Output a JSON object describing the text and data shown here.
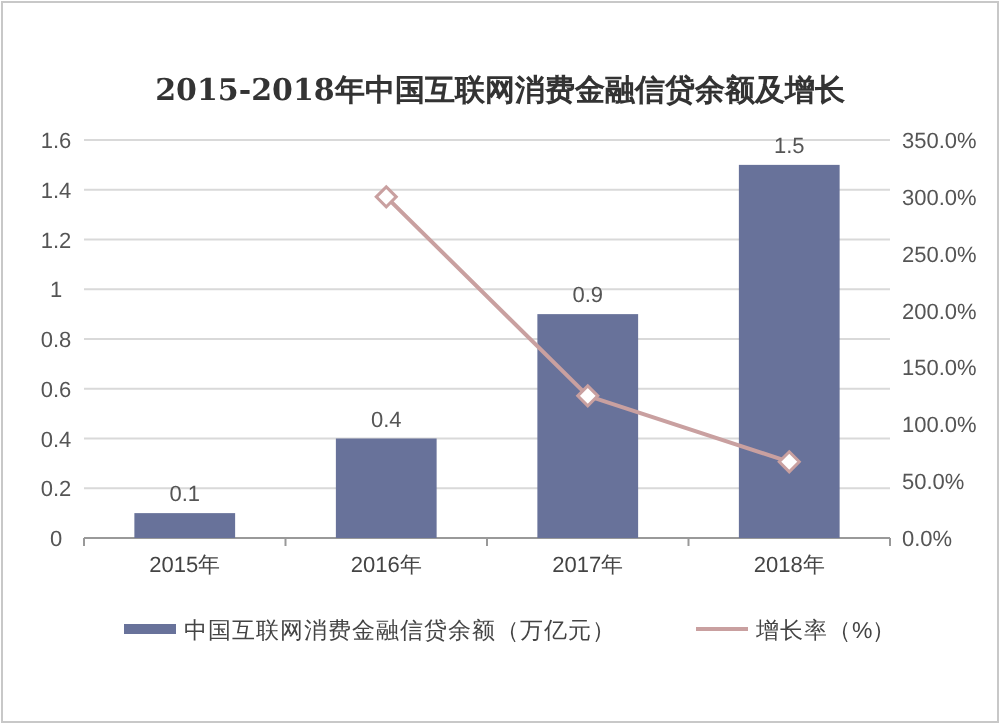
{
  "chart_data": {
    "type": "bar",
    "title": "2015-2018年中国互联网消费金融信贷余额及增长",
    "categories": [
      "2015年",
      "2016年",
      "2017年",
      "2018年"
    ],
    "series": [
      {
        "name": "中国互联网消费金融信贷余额（万亿元）",
        "color": "#68729a",
        "values": [
          0.1,
          0.4,
          0.9,
          1.5
        ],
        "value_labels": [
          "0.1",
          "0.4",
          "0.9",
          "1.5"
        ]
      },
      {
        "name": "增长率（%）",
        "type": "line",
        "axis": "y2",
        "color": "#c9a0a0",
        "marker": "diamond",
        "values": [
          null,
          300,
          125,
          67
        ]
      }
    ],
    "ylim": [
      0,
      1.6
    ],
    "yticks": [
      0,
      0.2,
      0.4,
      0.6,
      0.8,
      1,
      1.2,
      1.4,
      1.6
    ],
    "y2lim": [
      0,
      350
    ],
    "y2ticks": [
      {
        "value": 0,
        "label": "0.0%"
      },
      {
        "value": 50,
        "label": "50.0%"
      },
      {
        "value": 100,
        "label": "100.0%"
      },
      {
        "value": 150,
        "label": "150.0%"
      },
      {
        "value": 200,
        "label": "200.0%"
      },
      {
        "value": 250,
        "label": "250.0%"
      },
      {
        "value": 300,
        "label": "300.0%"
      },
      {
        "value": 350,
        "label": "350.0%"
      }
    ],
    "grid": "y",
    "legend": "bottom"
  }
}
